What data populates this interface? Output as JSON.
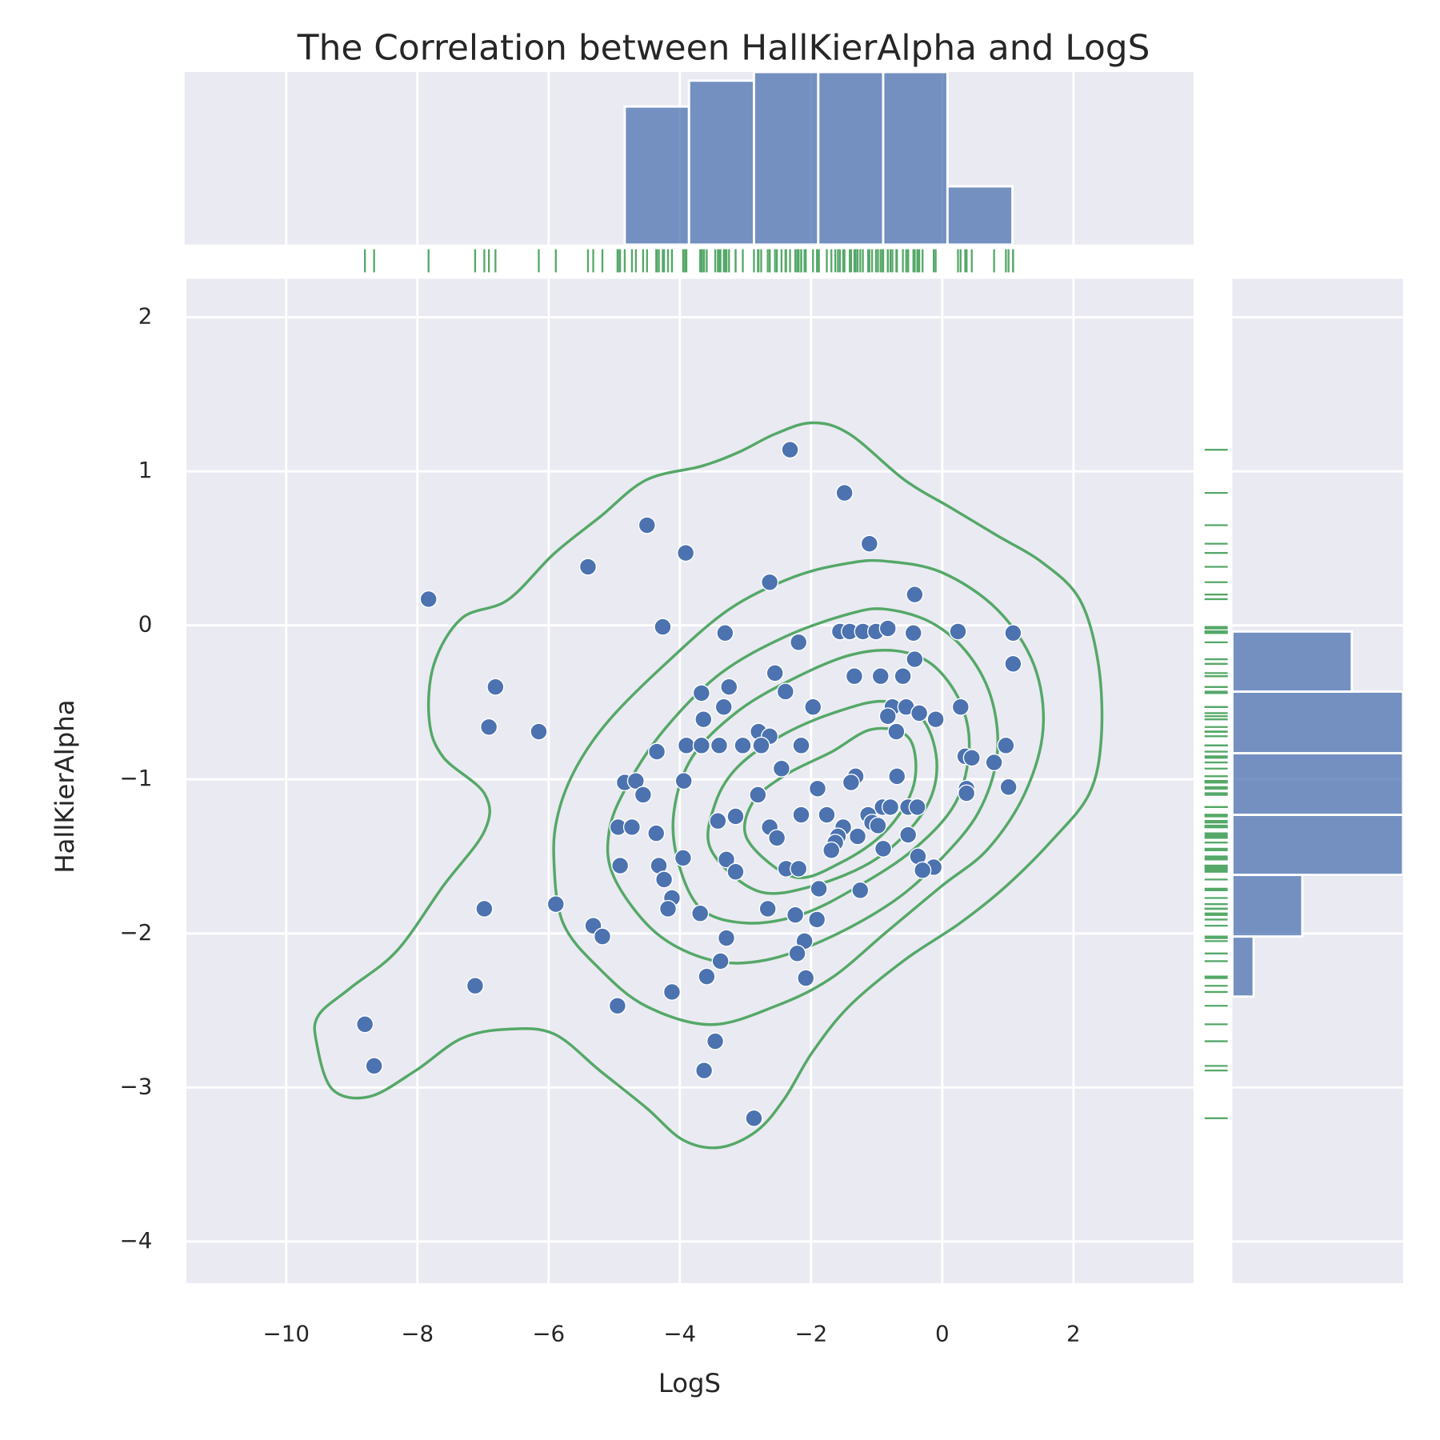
{
  "chart_data": [
    {
      "type": "scatter",
      "title": "The Correlation between HallKierAlpha and LogS",
      "xlabel": "LogS",
      "ylabel": "HallKierAlpha",
      "color": "#4c72b0",
      "rug_color": "#55a868",
      "kde_color": "#55a868",
      "grid": true,
      "xlim": [
        -11.52,
        3.83
      ],
      "ylim": [
        -4.27,
        2.25
      ],
      "xticks": [
        {
          "value": -10,
          "label": "−10"
        },
        {
          "value": -8,
          "label": "−8"
        },
        {
          "value": -6,
          "label": "−6"
        },
        {
          "value": -4,
          "label": "−4"
        },
        {
          "value": -2,
          "label": "−2"
        },
        0,
        2
      ],
      "yticks": [
        {
          "value": -4,
          "label": "−4"
        },
        {
          "value": -3,
          "label": "−3"
        },
        {
          "value": -2,
          "label": "−2"
        },
        {
          "value": -1,
          "label": "−1"
        },
        0,
        1,
        2
      ],
      "x": [
        -2.32,
        -1.49,
        -4.5,
        -3.91,
        -1.11,
        -5.4,
        -7.83,
        -2.63,
        -0.42,
        -4.26,
        -3.31,
        -2.19,
        -1.56,
        -1.41,
        -1.21,
        -1.01,
        -0.83,
        -0.44,
        0.24,
        1.08,
        1.08,
        -0.42,
        -2.55,
        -1.34,
        -0.94,
        -0.6,
        -6.81,
        -3.25,
        -3.67,
        -2.39,
        -1.97,
        -3.33,
        -0.76,
        -0.55,
        -0.35,
        0.28,
        -0.1,
        -3.64,
        -0.83,
        -6.91,
        -6.15,
        -0.7,
        -2.8,
        -2.63,
        -3.9,
        -3.67,
        -3.4,
        -3.04,
        -2.76,
        -2.15,
        0.97,
        -4.35,
        0.35,
        0.45,
        0.79,
        -2.45,
        -1.32,
        -0.69,
        -1.39,
        -3.94,
        -4.84,
        -4.67,
        0.37,
        1.01,
        -1.9,
        -4.56,
        0.37,
        -2.81,
        -0.91,
        -0.79,
        -0.52,
        -0.38,
        -1.13,
        -2.15,
        -1.76,
        -3.15,
        -3.42,
        -1.07,
        -0.98,
        -2.63,
        -4.94,
        -4.73,
        -1.51,
        -4.36,
        -1.29,
        -2.52,
        -0.52,
        -1.59,
        -1.63,
        -1.69,
        -0.9,
        -0.37,
        -3.95,
        -3.29,
        -4.91,
        -4.32,
        -0.13,
        -0.3,
        -2.38,
        -2.19,
        -3.15,
        -4.24,
        -1.88,
        -1.25,
        -4.12,
        -5.89,
        -6.98,
        -4.18,
        -2.66,
        -3.69,
        -2.24,
        -1.91,
        -5.32,
        -5.18,
        -3.29,
        -2.1,
        -2.21,
        -3.38,
        -2.08,
        -3.59,
        -7.12,
        -4.12,
        -4.95,
        -8.8,
        -3.46,
        -8.66,
        -3.63,
        -2.87
      ],
      "y": [
        1.14,
        0.86,
        0.65,
        0.47,
        0.53,
        0.38,
        0.17,
        0.28,
        0.2,
        -0.01,
        -0.05,
        -0.11,
        -0.04,
        -0.04,
        -0.04,
        -0.04,
        -0.02,
        -0.05,
        -0.04,
        -0.05,
        -0.25,
        -0.22,
        -0.31,
        -0.33,
        -0.33,
        -0.33,
        -0.4,
        -0.4,
        -0.44,
        -0.43,
        -0.53,
        -0.53,
        -0.53,
        -0.53,
        -0.57,
        -0.53,
        -0.61,
        -0.61,
        -0.59,
        -0.66,
        -0.69,
        -0.69,
        -0.69,
        -0.72,
        -0.78,
        -0.78,
        -0.78,
        -0.78,
        -0.78,
        -0.78,
        -0.78,
        -0.82,
        -0.85,
        -0.86,
        -0.89,
        -0.93,
        -0.98,
        -0.98,
        -1.02,
        -1.01,
        -1.02,
        -1.01,
        -1.06,
        -1.05,
        -1.06,
        -1.1,
        -1.09,
        -1.1,
        -1.18,
        -1.18,
        -1.18,
        -1.18,
        -1.23,
        -1.23,
        -1.23,
        -1.24,
        -1.27,
        -1.28,
        -1.3,
        -1.31,
        -1.31,
        -1.31,
        -1.31,
        -1.35,
        -1.37,
        -1.38,
        -1.36,
        -1.37,
        -1.41,
        -1.46,
        -1.45,
        -1.5,
        -1.51,
        -1.52,
        -1.56,
        -1.56,
        -1.57,
        -1.59,
        -1.58,
        -1.58,
        -1.6,
        -1.65,
        -1.71,
        -1.72,
        -1.77,
        -1.81,
        -1.84,
        -1.84,
        -1.84,
        -1.87,
        -1.88,
        -1.91,
        -1.95,
        -2.02,
        -2.03,
        -2.05,
        -2.13,
        -2.18,
        -2.29,
        -2.28,
        -2.34,
        -2.38,
        -2.47,
        -2.59,
        -2.7,
        -2.86,
        -2.89,
        -3.2
      ]
    },
    {
      "type": "histogram",
      "orientation": "vertical",
      "color": "#4c72b0",
      "bins": [
        -4.84,
        -3.86,
        -2.87,
        -1.89,
        -0.9,
        0.08,
        1.07
      ],
      "values": [
        32,
        38,
        40,
        40,
        40,
        13.5
      ],
      "ylim": [
        0,
        40
      ]
    },
    {
      "type": "histogram",
      "orientation": "horizontal",
      "color": "#4c72b0",
      "bins": [
        -2.41,
        -2.02,
        -1.62,
        -1.23,
        -0.83,
        -0.43,
        -0.04
      ],
      "values": [
        5,
        16.4,
        40,
        40,
        40,
        28
      ],
      "xlim": [
        0,
        40
      ]
    }
  ]
}
